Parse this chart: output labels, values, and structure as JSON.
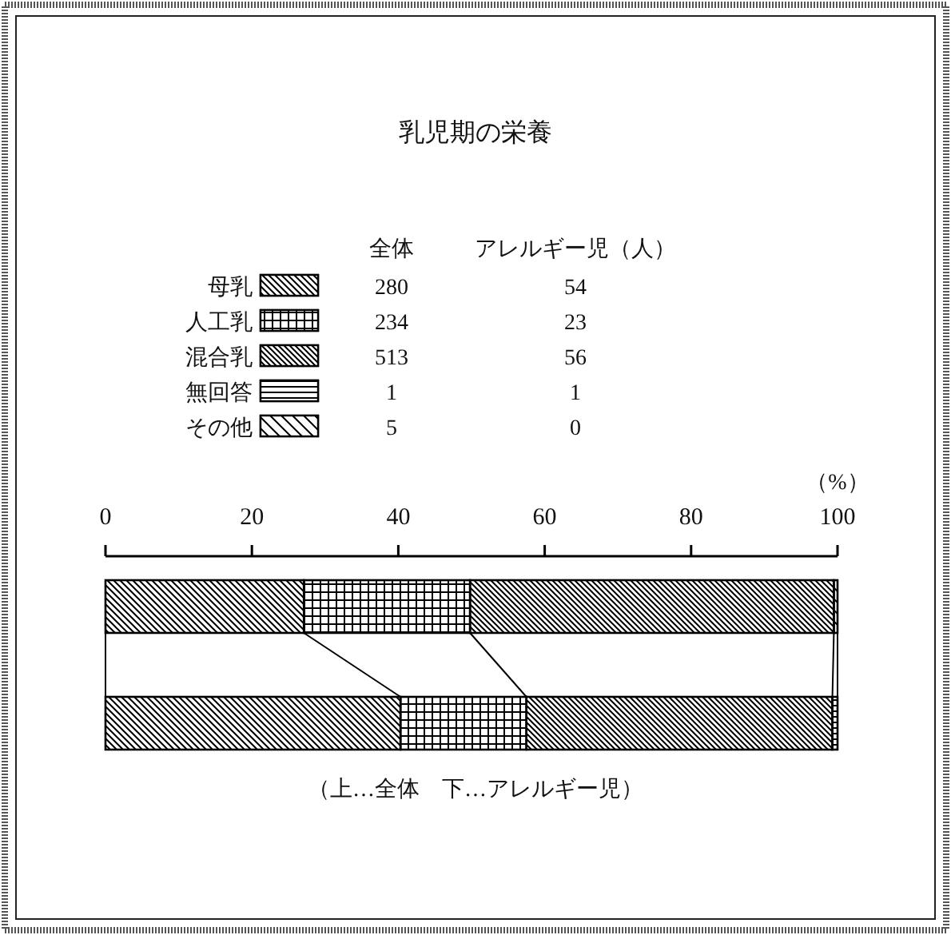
{
  "chart_data": {
    "type": "bar",
    "orientation": "horizontal",
    "stacked": true,
    "title": "乳児期の栄養",
    "categories": [
      null,
      null
    ],
    "xlim": [
      0,
      100
    ],
    "xticks": [
      0,
      20,
      40,
      60,
      80,
      100
    ],
    "xlabel": "（%）",
    "legend": "top left",
    "series": [
      {
        "name": "母乳",
        "color": "#000000",
        "values": [
          27.1,
          40.3
        ]
      },
      {
        "name": "人工乳",
        "color": "#000000",
        "values": [
          22.7,
          17.2
        ]
      },
      {
        "name": "混合乳",
        "color": "#000000",
        "values": [
          49.7,
          41.8
        ]
      },
      {
        "name": "無回答",
        "color": "#000000",
        "values": [
          null,
          0.7
        ]
      },
      {
        "name": "その他",
        "color": "#000000",
        "values": [
          0.5,
          0
        ]
      }
    ],
    "annotations": [
      "全体",
      "アレルギー児（人）",
      "280",
      "54",
      "234",
      "23",
      "513",
      "56",
      "1",
      "1",
      "5",
      "0",
      "（上…全体　下…アレルギー児）"
    ]
  }
}
